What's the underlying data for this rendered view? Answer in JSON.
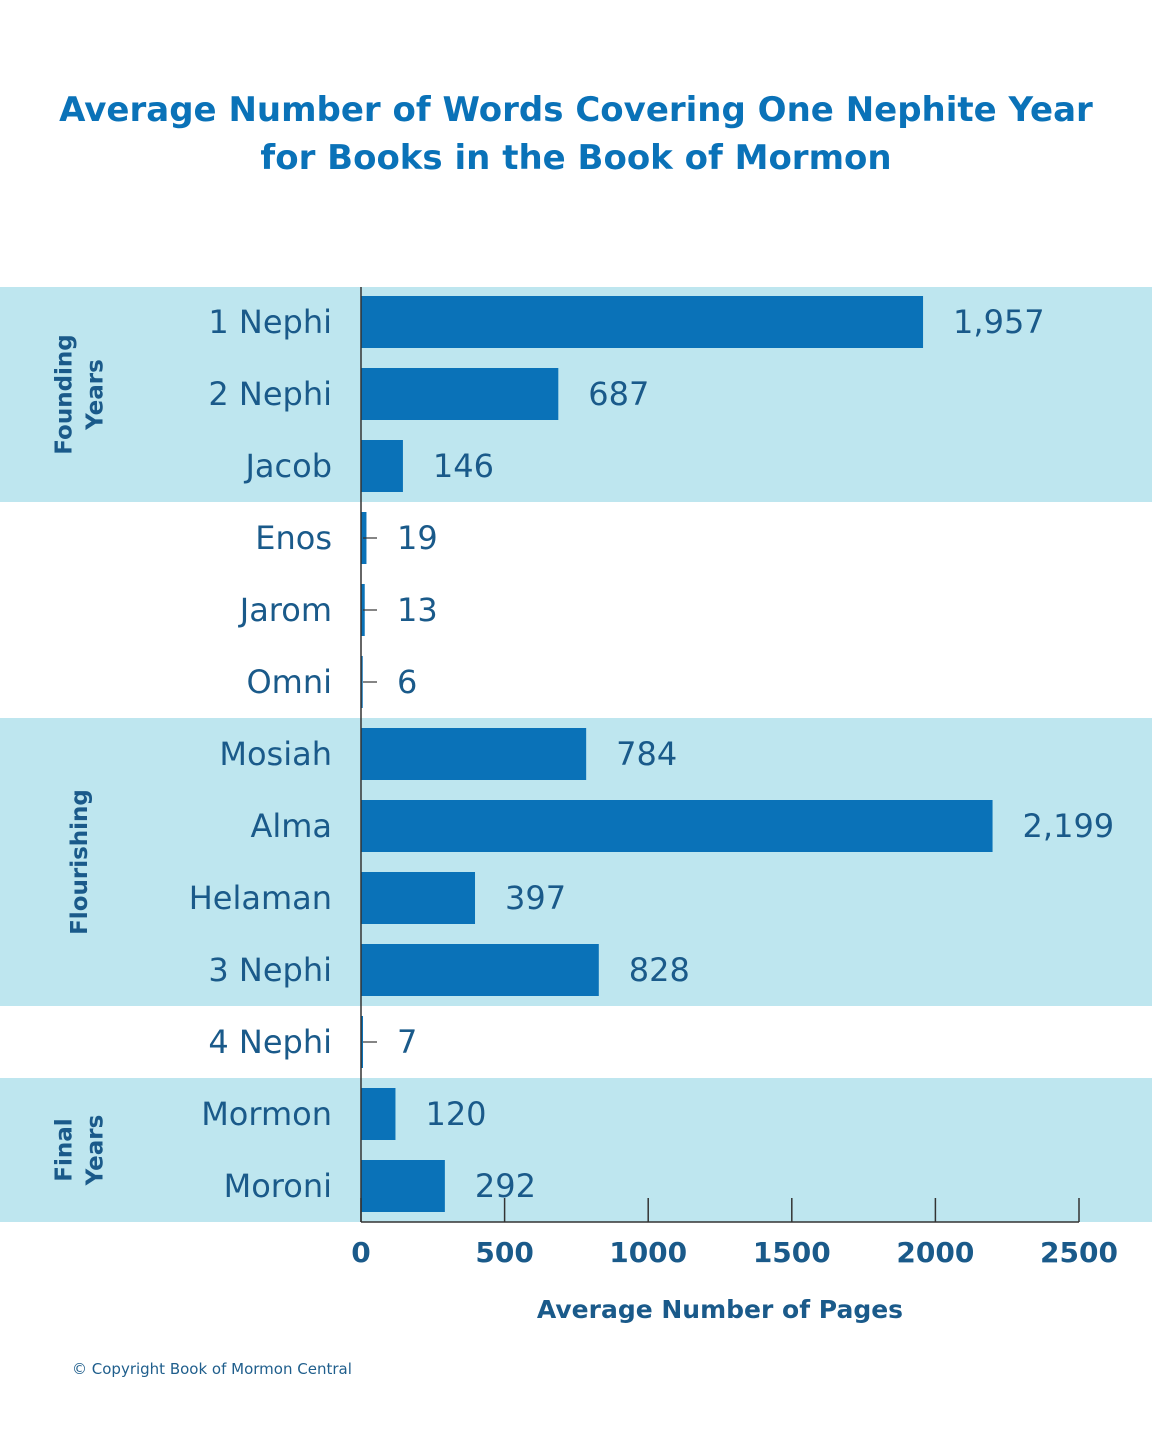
{
  "chart_data": {
    "type": "bar",
    "orientation": "horizontal",
    "title_lines": [
      "Average Number of Words Covering One Nephite Year",
      "for Books in the Book of Mormon"
    ],
    "xlabel": "Average Number of Pages",
    "ylabel": "",
    "xlim": [
      0,
      2500
    ],
    "xticks": [
      0,
      500,
      1000,
      1500,
      2000,
      2500
    ],
    "categories": [
      "1 Nephi",
      "2 Nephi",
      "Jacob",
      "Enos",
      "Jarom",
      "Omni",
      "Mosiah",
      "Alma",
      "Helaman",
      "3 Nephi",
      "4 Nephi",
      "Mormon",
      "Moroni"
    ],
    "values": [
      1957,
      687,
      146,
      19,
      13,
      6,
      784,
      2199,
      397,
      828,
      7,
      120,
      292
    ],
    "value_labels": [
      "1,957",
      "687",
      "146",
      "19",
      "13",
      "6",
      "784",
      "2,199",
      "397",
      "828",
      "7",
      "120",
      "292"
    ],
    "groups": [
      {
        "label_lines": [
          "Founding",
          "Years"
        ],
        "first": 0,
        "last": 2
      },
      {
        "label_lines": [
          "Flourishing"
        ],
        "first": 6,
        "last": 9
      },
      {
        "label_lines": [
          "Final",
          "Years"
        ],
        "first": 11,
        "last": 12
      }
    ],
    "grid": false,
    "colors": {
      "bar": "#0a72b8",
      "band": "#bee6ef",
      "text": "#1a5a8a",
      "title": "#0a72b8",
      "axis": "#333333"
    }
  },
  "footer": {
    "copyright": "© Copyright Book of Mormon Central"
  }
}
